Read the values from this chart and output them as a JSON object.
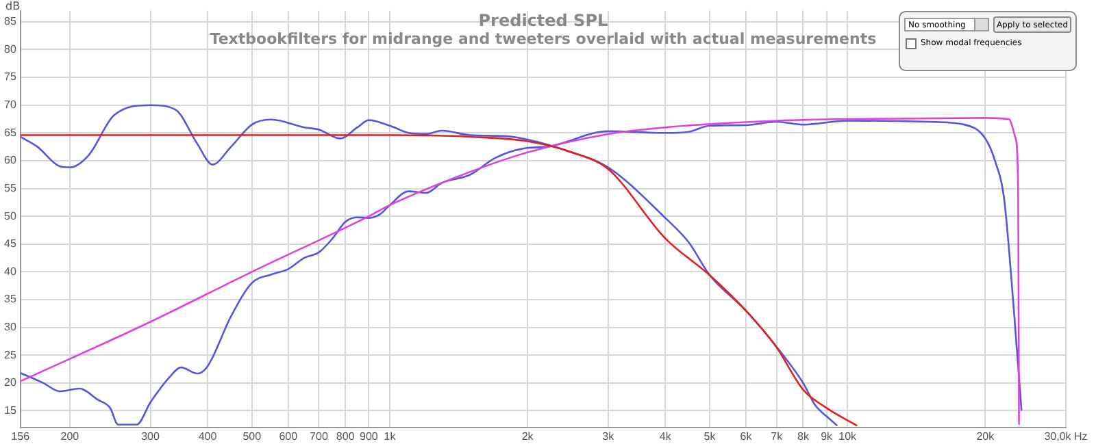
{
  "chart_data": {
    "type": "line",
    "title": "Predicted SPL",
    "subtitle": "Textbookfilters for midrange and tweeters overlaid with actual measurements",
    "ylabel": "dB",
    "annotations": [
      "No smoothing",
      "Apply to selected",
      "Show modal frequencies"
    ],
    "log": "x",
    "grid": true,
    "legend": false,
    "marker": "none",
    "line_style": "solid",
    "xlim": [
      156,
      30000
    ],
    "ylim": [
      12,
      87
    ],
    "xticks": [
      156,
      200,
      300,
      400,
      500,
      600,
      700,
      800,
      900,
      {
        "value": 1000,
        "label": "1k"
      },
      {
        "value": 2000,
        "label": "2k"
      },
      {
        "value": 3000,
        "label": "3k"
      },
      {
        "value": 4000,
        "label": "4k"
      },
      {
        "value": 5000,
        "label": "5k"
      },
      {
        "value": 6000,
        "label": "6k"
      },
      {
        "value": 7000,
        "label": "7k"
      },
      {
        "value": 8000,
        "label": "8k"
      },
      {
        "value": 9000,
        "label": "9k"
      },
      {
        "value": 10000,
        "label": "10k"
      },
      {
        "value": 20000,
        "label": "20k"
      },
      {
        "value": 30000,
        "label": "30,0k Hz"
      }
    ],
    "yticks": [
      15,
      20,
      25,
      30,
      35,
      40,
      45,
      50,
      55,
      60,
      65,
      70,
      75,
      80,
      85
    ],
    "series": [
      {
        "color": "#e02020",
        "x": [
          156,
          1000,
          1500,
          2000,
          2500,
          3000,
          4000,
          5000,
          6000,
          7000,
          8000,
          9000,
          10500
        ],
        "values": [
          64.6,
          64.6,
          64.3,
          63.5,
          61.5,
          58.5,
          46,
          39.4,
          33,
          26.4,
          18.8,
          15.5,
          12.3
        ]
      },
      {
        "color": "#e040e0",
        "x": [
          156,
          300,
          500,
          900,
          1000,
          1500,
          2000,
          3000,
          4000,
          5000,
          7000,
          10000,
          20000,
          22500,
          23300,
          23600,
          23700
        ],
        "values": [
          20.3,
          31,
          40,
          50,
          52,
          58,
          61.5,
          64.8,
          66,
          66.6,
          67.2,
          67.5,
          67.7,
          67.5,
          64,
          55,
          12.5
        ]
      },
      {
        "color": "#5555dd",
        "x": [
          156,
          170,
          190,
          200,
          220,
          250,
          300,
          340,
          380,
          410,
          450,
          500,
          550,
          650,
          700,
          780,
          850,
          900,
          1000,
          1100,
          1200,
          1300,
          1500,
          1800,
          2000,
          2500,
          3000,
          4000,
          4500,
          5000,
          6000,
          7000,
          8000,
          8500,
          9000,
          9500
        ],
        "values": [
          64.3,
          62.5,
          59,
          58.8,
          61,
          68.2,
          70,
          69.2,
          63,
          59.3,
          62.5,
          66.5,
          67.4,
          66,
          65.6,
          64,
          66,
          67.3,
          66.3,
          65,
          64.8,
          65.4,
          64.6,
          64.4,
          63.8,
          61.5,
          58.8,
          49.7,
          45.3,
          39.4,
          33,
          26.5,
          20,
          16,
          14,
          12.3
        ]
      },
      {
        "color": "#5555dd",
        "x": [
          156,
          175,
          190,
          210,
          230,
          245,
          255,
          280,
          300,
          330,
          350,
          380,
          400,
          450,
          500,
          550,
          600,
          650,
          700,
          750,
          800,
          850,
          900,
          950,
          1000,
          1100,
          1200,
          1300,
          1500,
          1700,
          2000,
          2200,
          3000,
          4000,
          4500,
          5000,
          6000,
          7000,
          8000,
          10000,
          15000,
          18000,
          20000,
          21000,
          22000,
          23000,
          24000
        ],
        "values": [
          21.8,
          20,
          18.5,
          19,
          17,
          15.5,
          12.5,
          12.5,
          16.5,
          21,
          22.8,
          21.7,
          23,
          32,
          38,
          39.5,
          40.5,
          42.5,
          43.5,
          46,
          49,
          49.8,
          49.7,
          50.3,
          52,
          54.5,
          54.2,
          56,
          57.5,
          60.5,
          62.3,
          62.5,
          65.3,
          65,
          65.2,
          66.3,
          66.4,
          67,
          66.5,
          67.2,
          67,
          66.5,
          64,
          60,
          53,
          35,
          15
        ]
      }
    ]
  }
}
